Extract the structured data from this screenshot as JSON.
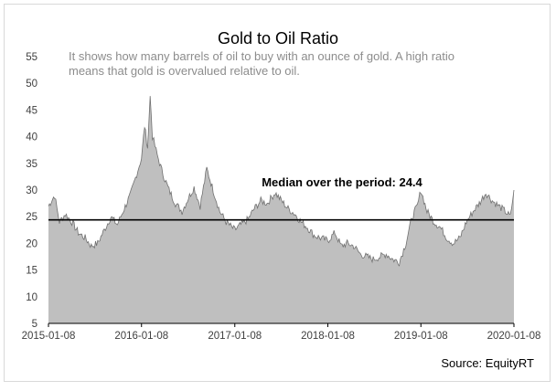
{
  "chart_data": {
    "type": "area",
    "title": "Gold to Oil Ratio",
    "subtitle_lines": [
      "It shows how many barrels of oil to buy with an ounce of gold. A high ratio",
      "means that gold is overvalued relative to oil."
    ],
    "xlabel": "",
    "ylabel": "",
    "x_ticks": [
      "2015-01-08",
      "2016-01-08",
      "2017-01-08",
      "2018-01-08",
      "2019-01-08",
      "2020-01-08"
    ],
    "y_ticks": [
      5,
      10,
      15,
      20,
      25,
      30,
      35,
      40,
      45,
      50,
      55
    ],
    "xlim": [
      "2015-01-08",
      "2020-01-08"
    ],
    "ylim": [
      5,
      55
    ],
    "grid": false,
    "series": [
      {
        "x": [
          "2015-01-08",
          "2015-02-01",
          "2015-02-20",
          "2015-03-15",
          "2015-04-10",
          "2015-05-05",
          "2015-06-01",
          "2015-06-25",
          "2015-07-20",
          "2015-08-15",
          "2015-09-10",
          "2015-10-05",
          "2015-11-01",
          "2015-11-25",
          "2015-12-20",
          "2016-01-08",
          "2016-01-20",
          "2016-02-01",
          "2016-02-11",
          "2016-02-20",
          "2016-03-10",
          "2016-04-01",
          "2016-04-25",
          "2016-05-20",
          "2016-06-15",
          "2016-07-10",
          "2016-08-01",
          "2016-08-25",
          "2016-09-20",
          "2016-10-15",
          "2016-11-10",
          "2016-12-05",
          "2017-01-08",
          "2017-02-01",
          "2017-03-01",
          "2017-03-25",
          "2017-04-20",
          "2017-05-15",
          "2017-06-15",
          "2017-07-10",
          "2017-08-05",
          "2017-09-01",
          "2017-09-25",
          "2017-10-20",
          "2017-11-15",
          "2017-12-10",
          "2018-01-08",
          "2018-02-05",
          "2018-03-01",
          "2018-03-25",
          "2018-04-20",
          "2018-05-15",
          "2018-06-10",
          "2018-07-05",
          "2018-08-01",
          "2018-08-25",
          "2018-09-20",
          "2018-10-15",
          "2018-11-10",
          "2018-12-05",
          "2018-12-25",
          "2019-01-08",
          "2019-02-01",
          "2019-03-01",
          "2019-03-25",
          "2019-04-20",
          "2019-05-15",
          "2019-06-10",
          "2019-07-05",
          "2019-08-01",
          "2019-08-25",
          "2019-09-20",
          "2019-10-15",
          "2019-11-10",
          "2019-12-05",
          "2019-12-25",
          "2020-01-08"
        ],
        "y": [
          27.0,
          29.0,
          24.0,
          25.5,
          24.0,
          22.0,
          21.0,
          19.5,
          20.0,
          22.5,
          25.0,
          23.5,
          26.5,
          29.0,
          33.0,
          36.0,
          42.0,
          38.0,
          47.5,
          40.0,
          36.5,
          33.0,
          30.0,
          27.5,
          26.0,
          28.5,
          30.5,
          27.0,
          34.0,
          30.0,
          26.0,
          24.0,
          22.5,
          23.5,
          24.5,
          26.5,
          28.0,
          27.5,
          29.5,
          28.0,
          26.5,
          25.5,
          24.0,
          23.0,
          21.5,
          21.0,
          20.5,
          22.0,
          19.5,
          20.0,
          19.5,
          18.0,
          17.5,
          17.0,
          17.5,
          18.0,
          17.0,
          16.5,
          20.0,
          25.0,
          27.0,
          30.0,
          26.0,
          24.0,
          23.0,
          21.0,
          20.0,
          21.0,
          24.0,
          26.0,
          27.5,
          29.5,
          28.0,
          27.0,
          26.0,
          25.0,
          30.0
        ]
      }
    ],
    "reference_line": {
      "value": 24.4,
      "label": "Median over the period: 24.4"
    },
    "source": "Source: EquityRT",
    "colors": {
      "fill": "#bfbfbf",
      "stroke": "#707070",
      "median": "#000000",
      "axis": "#000000"
    }
  }
}
